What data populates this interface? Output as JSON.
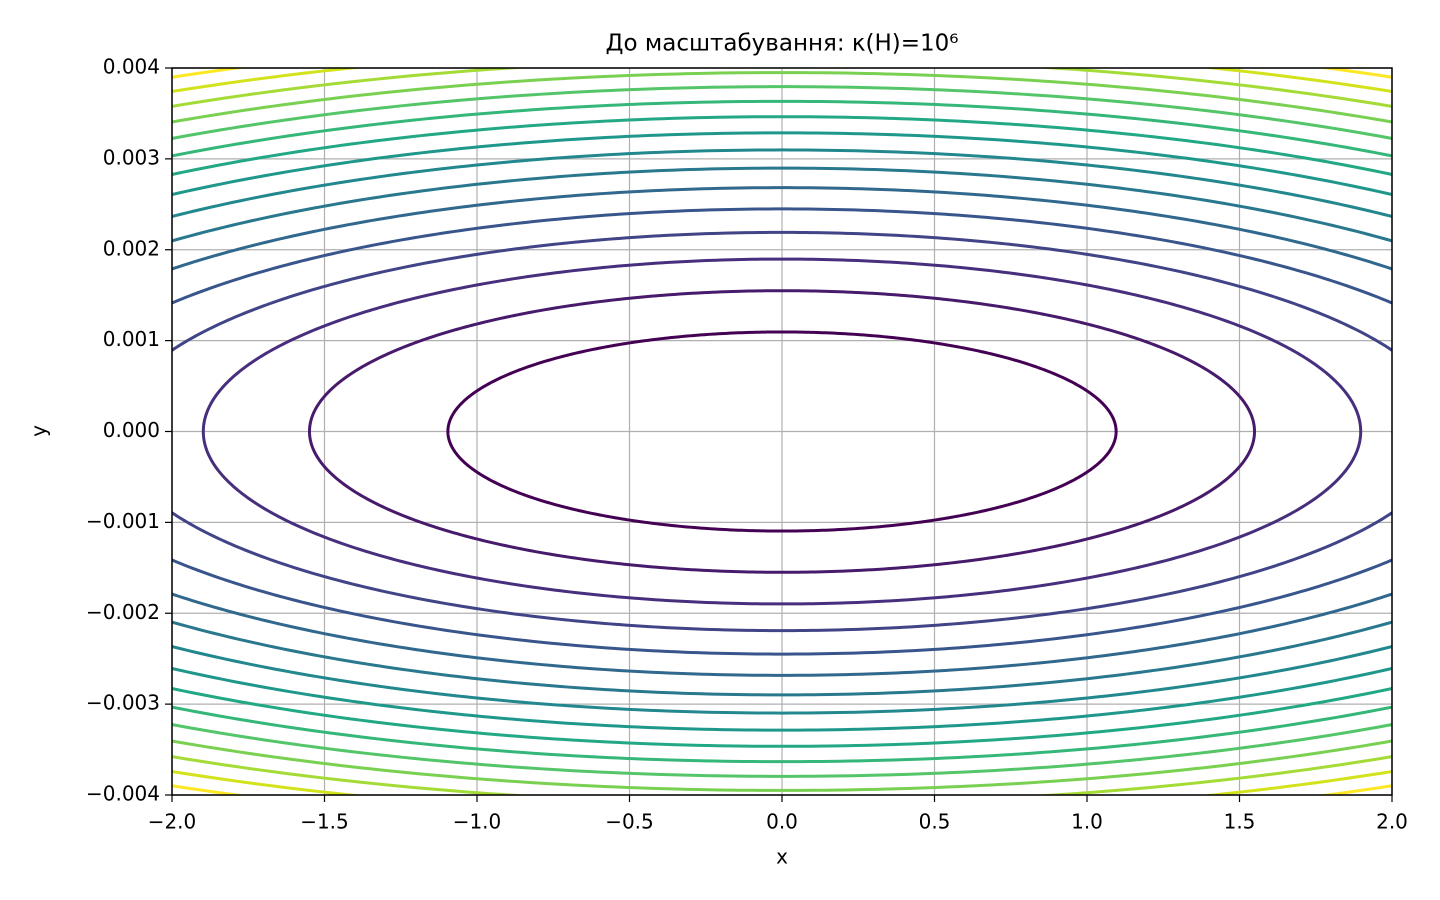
{
  "chart_data": {
    "type": "contour",
    "title": "До масштабування: κ(H)=10⁶",
    "xlabel": "x",
    "ylabel": "y",
    "coefficients": [
      0.5,
      500000
    ],
    "levels": [
      0.6,
      1.2,
      1.8,
      2.4,
      3.0,
      3.6,
      4.2,
      4.8,
      5.4,
      6.0,
      6.6,
      7.2,
      7.8,
      8.4,
      9.0,
      9.6
    ],
    "level_colors": [
      "#440154",
      "#481a6c",
      "#472f7d",
      "#414487",
      "#39568c",
      "#31688e",
      "#2a788e",
      "#23888e",
      "#1f988b",
      "#22a884",
      "#35b779",
      "#54c568",
      "#7ad151",
      "#a5db36",
      "#d2e21b",
      "#fde725"
    ],
    "xlim": [
      -2,
      2
    ],
    "ylim": [
      -0.004,
      0.004
    ],
    "xticks": [
      {
        "value": -2,
        "label": "−2.0"
      },
      {
        "value": -1.5,
        "label": "−1.5"
      },
      {
        "value": -1,
        "label": "−1.0"
      },
      {
        "value": -0.5,
        "label": "−0.5"
      },
      {
        "value": 0,
        "label": "0.0"
      },
      0.5,
      {
        "value": 1,
        "label": "1.0"
      },
      1.5,
      {
        "value": 2,
        "label": "2.0"
      }
    ],
    "yticks": [
      {
        "value": -0.004,
        "label": "−0.004"
      },
      {
        "value": -0.003,
        "label": "−0.003"
      },
      {
        "value": -0.002,
        "label": "−0.002"
      },
      {
        "value": -0.001,
        "label": "−0.001"
      },
      {
        "value": 0,
        "label": "0.000"
      },
      0.001,
      0.002,
      0.003,
      0.004
    ],
    "grid": true
  }
}
